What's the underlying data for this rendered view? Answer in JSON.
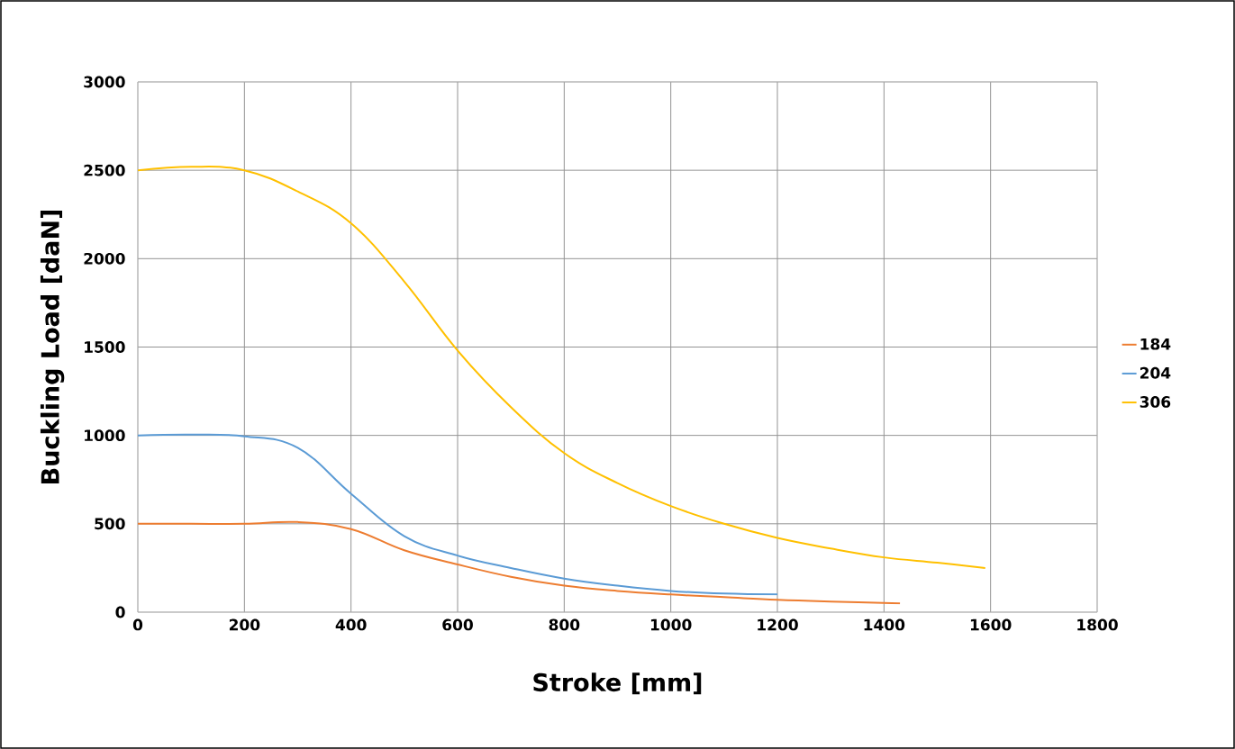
{
  "chart_data": {
    "type": "line",
    "xlabel": "Stroke [mm]",
    "ylabel": "Buckling Load [daN]",
    "xlim": [
      0,
      1800
    ],
    "ylim": [
      0,
      3000
    ],
    "xticks": [
      0,
      200,
      400,
      600,
      800,
      1000,
      1200,
      1400,
      1600,
      1800
    ],
    "yticks": [
      0,
      500,
      1000,
      1500,
      2000,
      2500,
      3000
    ],
    "grid": true,
    "legend": "right",
    "series": [
      {
        "name": "184",
        "color": "#ed7d31",
        "x": [
          0,
          100,
          200,
          300,
          400,
          500,
          600,
          700,
          800,
          900,
          1000,
          1100,
          1200,
          1300,
          1430
        ],
        "values": [
          500,
          500,
          500,
          510,
          470,
          350,
          270,
          200,
          150,
          120,
          100,
          85,
          70,
          60,
          50
        ]
      },
      {
        "name": "204",
        "color": "#5b9bd5",
        "x": [
          0,
          100,
          200,
          300,
          400,
          500,
          600,
          700,
          800,
          900,
          1000,
          1100,
          1200
        ],
        "values": [
          1000,
          1005,
          995,
          930,
          670,
          430,
          320,
          250,
          190,
          150,
          120,
          105,
          100
        ]
      },
      {
        "name": "306",
        "color": "#ffc000",
        "x": [
          0,
          100,
          200,
          300,
          400,
          500,
          600,
          700,
          800,
          900,
          1000,
          1100,
          1200,
          1300,
          1400,
          1500,
          1590
        ],
        "values": [
          2500,
          2520,
          2500,
          2380,
          2200,
          1870,
          1480,
          1160,
          900,
          730,
          600,
          500,
          420,
          360,
          310,
          280,
          250
        ]
      }
    ]
  }
}
